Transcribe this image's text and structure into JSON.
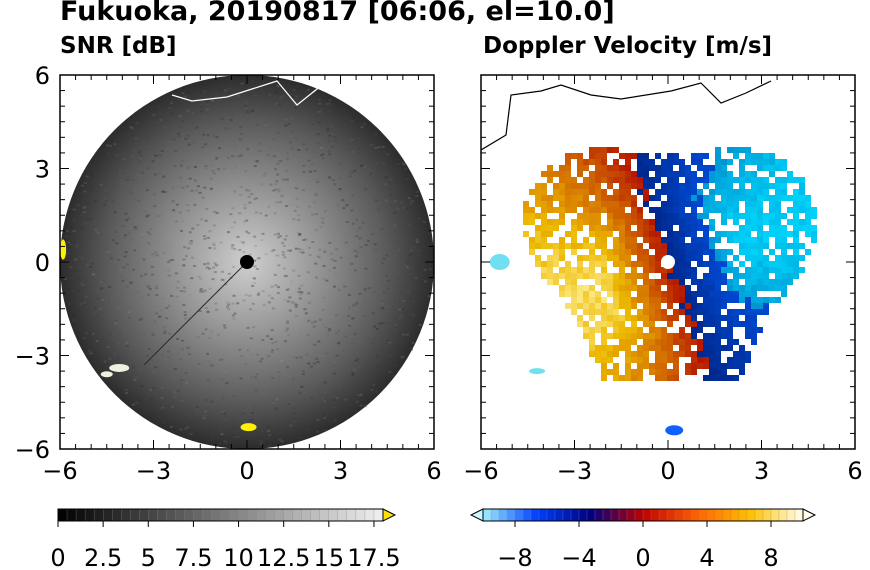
{
  "title": "Fukuoka, 20190817 [06:06, el=10.0]",
  "panels": [
    {
      "title": "SNR [dB]"
    },
    {
      "title": "Doppler Velocity [m/s]"
    }
  ],
  "chart_data": [
    {
      "type": "heatmap",
      "title": "SNR [dB]",
      "x_ticks": [
        "−6",
        "−3",
        "0",
        "3",
        "6"
      ],
      "y_ticks": [
        "6",
        "3",
        "0",
        "−3",
        "−6"
      ],
      "xlim": [
        -6,
        6
      ],
      "ylim": [
        -6,
        6
      ],
      "colorbar": {
        "min": 0,
        "max": 18,
        "step": 0.5,
        "extend": "max",
        "tick_labels": [
          "0",
          "2.5",
          "5",
          "7.5",
          "10",
          "12.5",
          "15",
          "17.5"
        ],
        "tick_values": [
          0,
          2.5,
          5,
          7.5,
          10,
          12.5,
          15,
          17.5
        ],
        "colors": [
          "#000000",
          "#ffffff",
          "#ffe000"
        ]
      },
      "radar_range": 6,
      "radar_site": [
        0,
        0
      ]
    },
    {
      "type": "heatmap",
      "title": "Doppler Velocity [m/s]",
      "x_ticks": [
        "−6",
        "−3",
        "0",
        "3",
        "6"
      ],
      "y_ticks": [],
      "xlim": [
        -6,
        6
      ],
      "ylim": [
        -6,
        6
      ],
      "colorbar": {
        "min": -10,
        "max": 10,
        "step": 0.5,
        "extend": "both",
        "tick_labels": [
          "−8",
          "−4",
          "0",
          "4",
          "8"
        ],
        "tick_values": [
          -8,
          -4,
          0,
          4,
          8
        ],
        "colors": [
          "#a0f0ff",
          "#0040ff",
          "#000080",
          "#c00000",
          "#ff6000",
          "#ffc000",
          "#fffff0"
        ]
      },
      "radar_site": [
        0,
        0
      ]
    }
  ]
}
